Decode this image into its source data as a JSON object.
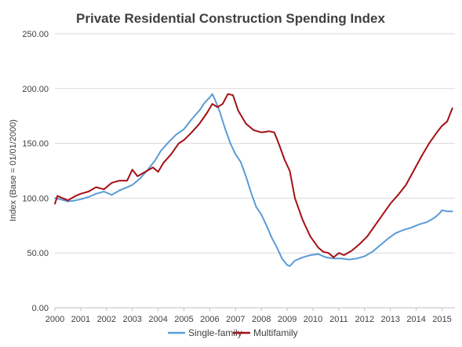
{
  "chart_data": {
    "type": "line",
    "title": "Private Residential Construction Spending Index",
    "ylabel": "Index (Base = 01/01/2000)",
    "xlabel": "",
    "ylim": [
      0,
      250
    ],
    "xlim": [
      2000,
      2015.5
    ],
    "grid": "horizontal",
    "legend_position": "bottom",
    "y_ticks": [
      "0.00",
      "50.00",
      "100.00",
      "150.00",
      "200.00",
      "250.00"
    ],
    "y_tick_values": [
      0,
      50,
      100,
      150,
      200,
      250
    ],
    "x_ticks": [
      "2000",
      "2001",
      "2002",
      "2003",
      "2004",
      "2005",
      "2006",
      "2007",
      "2008",
      "2009",
      "2010",
      "2011",
      "2012",
      "2013",
      "2014",
      "2015"
    ],
    "x_tick_values": [
      2000,
      2001,
      2002,
      2003,
      2004,
      2005,
      2006,
      2007,
      2008,
      2009,
      2010,
      2011,
      2012,
      2013,
      2014,
      2015
    ],
    "series": [
      {
        "name": "Single-family",
        "color": "#5b9bd5",
        "points": [
          [
            2000.0,
            100
          ],
          [
            2000.2,
            99
          ],
          [
            2000.5,
            97
          ],
          [
            2000.8,
            98
          ],
          [
            2001.0,
            99
          ],
          [
            2001.3,
            101
          ],
          [
            2001.6,
            104
          ],
          [
            2001.9,
            106
          ],
          [
            2002.2,
            103
          ],
          [
            2002.5,
            107
          ],
          [
            2002.8,
            110
          ],
          [
            2003.0,
            112
          ],
          [
            2003.3,
            118
          ],
          [
            2003.6,
            126
          ],
          [
            2003.9,
            135
          ],
          [
            2004.1,
            143
          ],
          [
            2004.4,
            151
          ],
          [
            2004.7,
            158
          ],
          [
            2005.0,
            163
          ],
          [
            2005.3,
            172
          ],
          [
            2005.6,
            180
          ],
          [
            2005.8,
            187
          ],
          [
            2006.0,
            192
          ],
          [
            2006.1,
            195
          ],
          [
            2006.2,
            190
          ],
          [
            2006.4,
            178
          ],
          [
            2006.6,
            163
          ],
          [
            2006.8,
            150
          ],
          [
            2007.0,
            140
          ],
          [
            2007.2,
            133
          ],
          [
            2007.4,
            120
          ],
          [
            2007.6,
            105
          ],
          [
            2007.8,
            92
          ],
          [
            2008.0,
            85
          ],
          [
            2008.2,
            75
          ],
          [
            2008.4,
            64
          ],
          [
            2008.6,
            55
          ],
          [
            2008.8,
            45
          ],
          [
            2009.0,
            39
          ],
          [
            2009.1,
            38
          ],
          [
            2009.3,
            43
          ],
          [
            2009.6,
            46
          ],
          [
            2009.9,
            48
          ],
          [
            2010.2,
            49
          ],
          [
            2010.5,
            46
          ],
          [
            2010.8,
            45
          ],
          [
            2011.1,
            45
          ],
          [
            2011.4,
            44
          ],
          [
            2011.7,
            45
          ],
          [
            2012.0,
            47
          ],
          [
            2012.3,
            51
          ],
          [
            2012.6,
            57
          ],
          [
            2012.9,
            63
          ],
          [
            2013.2,
            68
          ],
          [
            2013.5,
            71
          ],
          [
            2013.8,
            73
          ],
          [
            2014.1,
            76
          ],
          [
            2014.4,
            78
          ],
          [
            2014.7,
            82
          ],
          [
            2014.9,
            86
          ],
          [
            2015.0,
            89
          ],
          [
            2015.2,
            88
          ],
          [
            2015.4,
            88
          ]
        ]
      },
      {
        "name": "Multifamily",
        "color": "#a50f15",
        "points": [
          [
            2000.0,
            95
          ],
          [
            2000.1,
            102
          ],
          [
            2000.3,
            100
          ],
          [
            2000.5,
            98
          ],
          [
            2000.8,
            102
          ],
          [
            2001.0,
            104
          ],
          [
            2001.3,
            106
          ],
          [
            2001.6,
            110
          ],
          [
            2001.9,
            108
          ],
          [
            2002.2,
            114
          ],
          [
            2002.5,
            116
          ],
          [
            2002.8,
            116
          ],
          [
            2003.0,
            126
          ],
          [
            2003.2,
            120
          ],
          [
            2003.5,
            124
          ],
          [
            2003.8,
            128
          ],
          [
            2004.0,
            124
          ],
          [
            2004.2,
            132
          ],
          [
            2004.5,
            140
          ],
          [
            2004.8,
            150
          ],
          [
            2005.0,
            153
          ],
          [
            2005.3,
            160
          ],
          [
            2005.6,
            168
          ],
          [
            2005.9,
            178
          ],
          [
            2006.1,
            186
          ],
          [
            2006.3,
            183
          ],
          [
            2006.5,
            186
          ],
          [
            2006.7,
            195
          ],
          [
            2006.9,
            194
          ],
          [
            2007.1,
            180
          ],
          [
            2007.4,
            168
          ],
          [
            2007.7,
            162
          ],
          [
            2008.0,
            160
          ],
          [
            2008.3,
            161
          ],
          [
            2008.5,
            160
          ],
          [
            2008.7,
            148
          ],
          [
            2008.9,
            135
          ],
          [
            2009.1,
            125
          ],
          [
            2009.3,
            100
          ],
          [
            2009.6,
            80
          ],
          [
            2009.9,
            65
          ],
          [
            2010.2,
            55
          ],
          [
            2010.4,
            51
          ],
          [
            2010.6,
            50
          ],
          [
            2010.8,
            46
          ],
          [
            2011.0,
            50
          ],
          [
            2011.2,
            48
          ],
          [
            2011.5,
            52
          ],
          [
            2011.8,
            58
          ],
          [
            2012.1,
            65
          ],
          [
            2012.4,
            75
          ],
          [
            2012.7,
            85
          ],
          [
            2013.0,
            95
          ],
          [
            2013.3,
            103
          ],
          [
            2013.6,
            112
          ],
          [
            2013.9,
            125
          ],
          [
            2014.2,
            138
          ],
          [
            2014.5,
            150
          ],
          [
            2014.8,
            160
          ],
          [
            2015.0,
            166
          ],
          [
            2015.2,
            170
          ],
          [
            2015.4,
            182
          ]
        ]
      }
    ]
  }
}
